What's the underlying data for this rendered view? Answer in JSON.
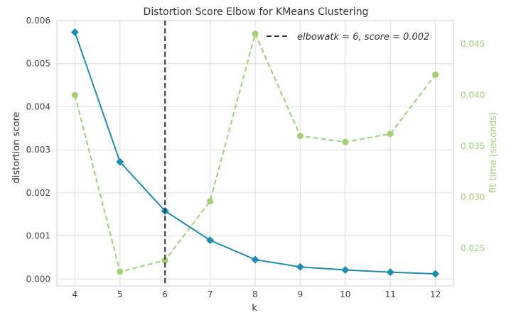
{
  "chart_data": {
    "type": "line",
    "title": "Distortion Score Elbow for KMeans Clustering",
    "xlabel": "k",
    "ylabel": "distortion score",
    "y2label": "fit time (seconds)",
    "x": [
      4,
      5,
      6,
      7,
      8,
      9,
      10,
      11,
      12
    ],
    "xticks": [
      "4",
      "5",
      "6",
      "7",
      "8",
      "9",
      "10",
      "11",
      "12"
    ],
    "xlim": [
      3.6,
      12.4
    ],
    "ylim": [
      -0.00016,
      0.006
    ],
    "y2lim": [
      0.0213,
      0.0473
    ],
    "yticks": [
      "0.000",
      "0.001",
      "0.002",
      "0.003",
      "0.004",
      "0.005",
      "0.006"
    ],
    "yticks_values": [
      0,
      0.001,
      0.002,
      0.003,
      0.004,
      0.005,
      0.006
    ],
    "y2ticks": [
      "0.025",
      "0.030",
      "0.035",
      "0.040",
      "0.045"
    ],
    "y2ticks_values": [
      0.025,
      0.03,
      0.035,
      0.04,
      0.045
    ],
    "grid": true,
    "legend_position": "top-right",
    "series": [
      {
        "axis": "left",
        "color": "#1f8bb0",
        "marker": "diamond",
        "style": "solid",
        "values": [
          0.00573,
          0.00272,
          0.00158,
          0.0009,
          0.00045,
          0.00028,
          0.00021,
          0.00016,
          0.00012
        ]
      },
      {
        "axis": "right",
        "color": "#a4cf79",
        "marker": "circle",
        "style": "dashed",
        "values": [
          0.04,
          0.0227,
          0.0238,
          0.0296,
          0.046,
          0.036,
          0.0354,
          0.0362,
          0.042
        ]
      }
    ],
    "elbow": {
      "k": 6,
      "legend": "elbowatk = 6, score = 0.002",
      "color": "#333333"
    }
  }
}
